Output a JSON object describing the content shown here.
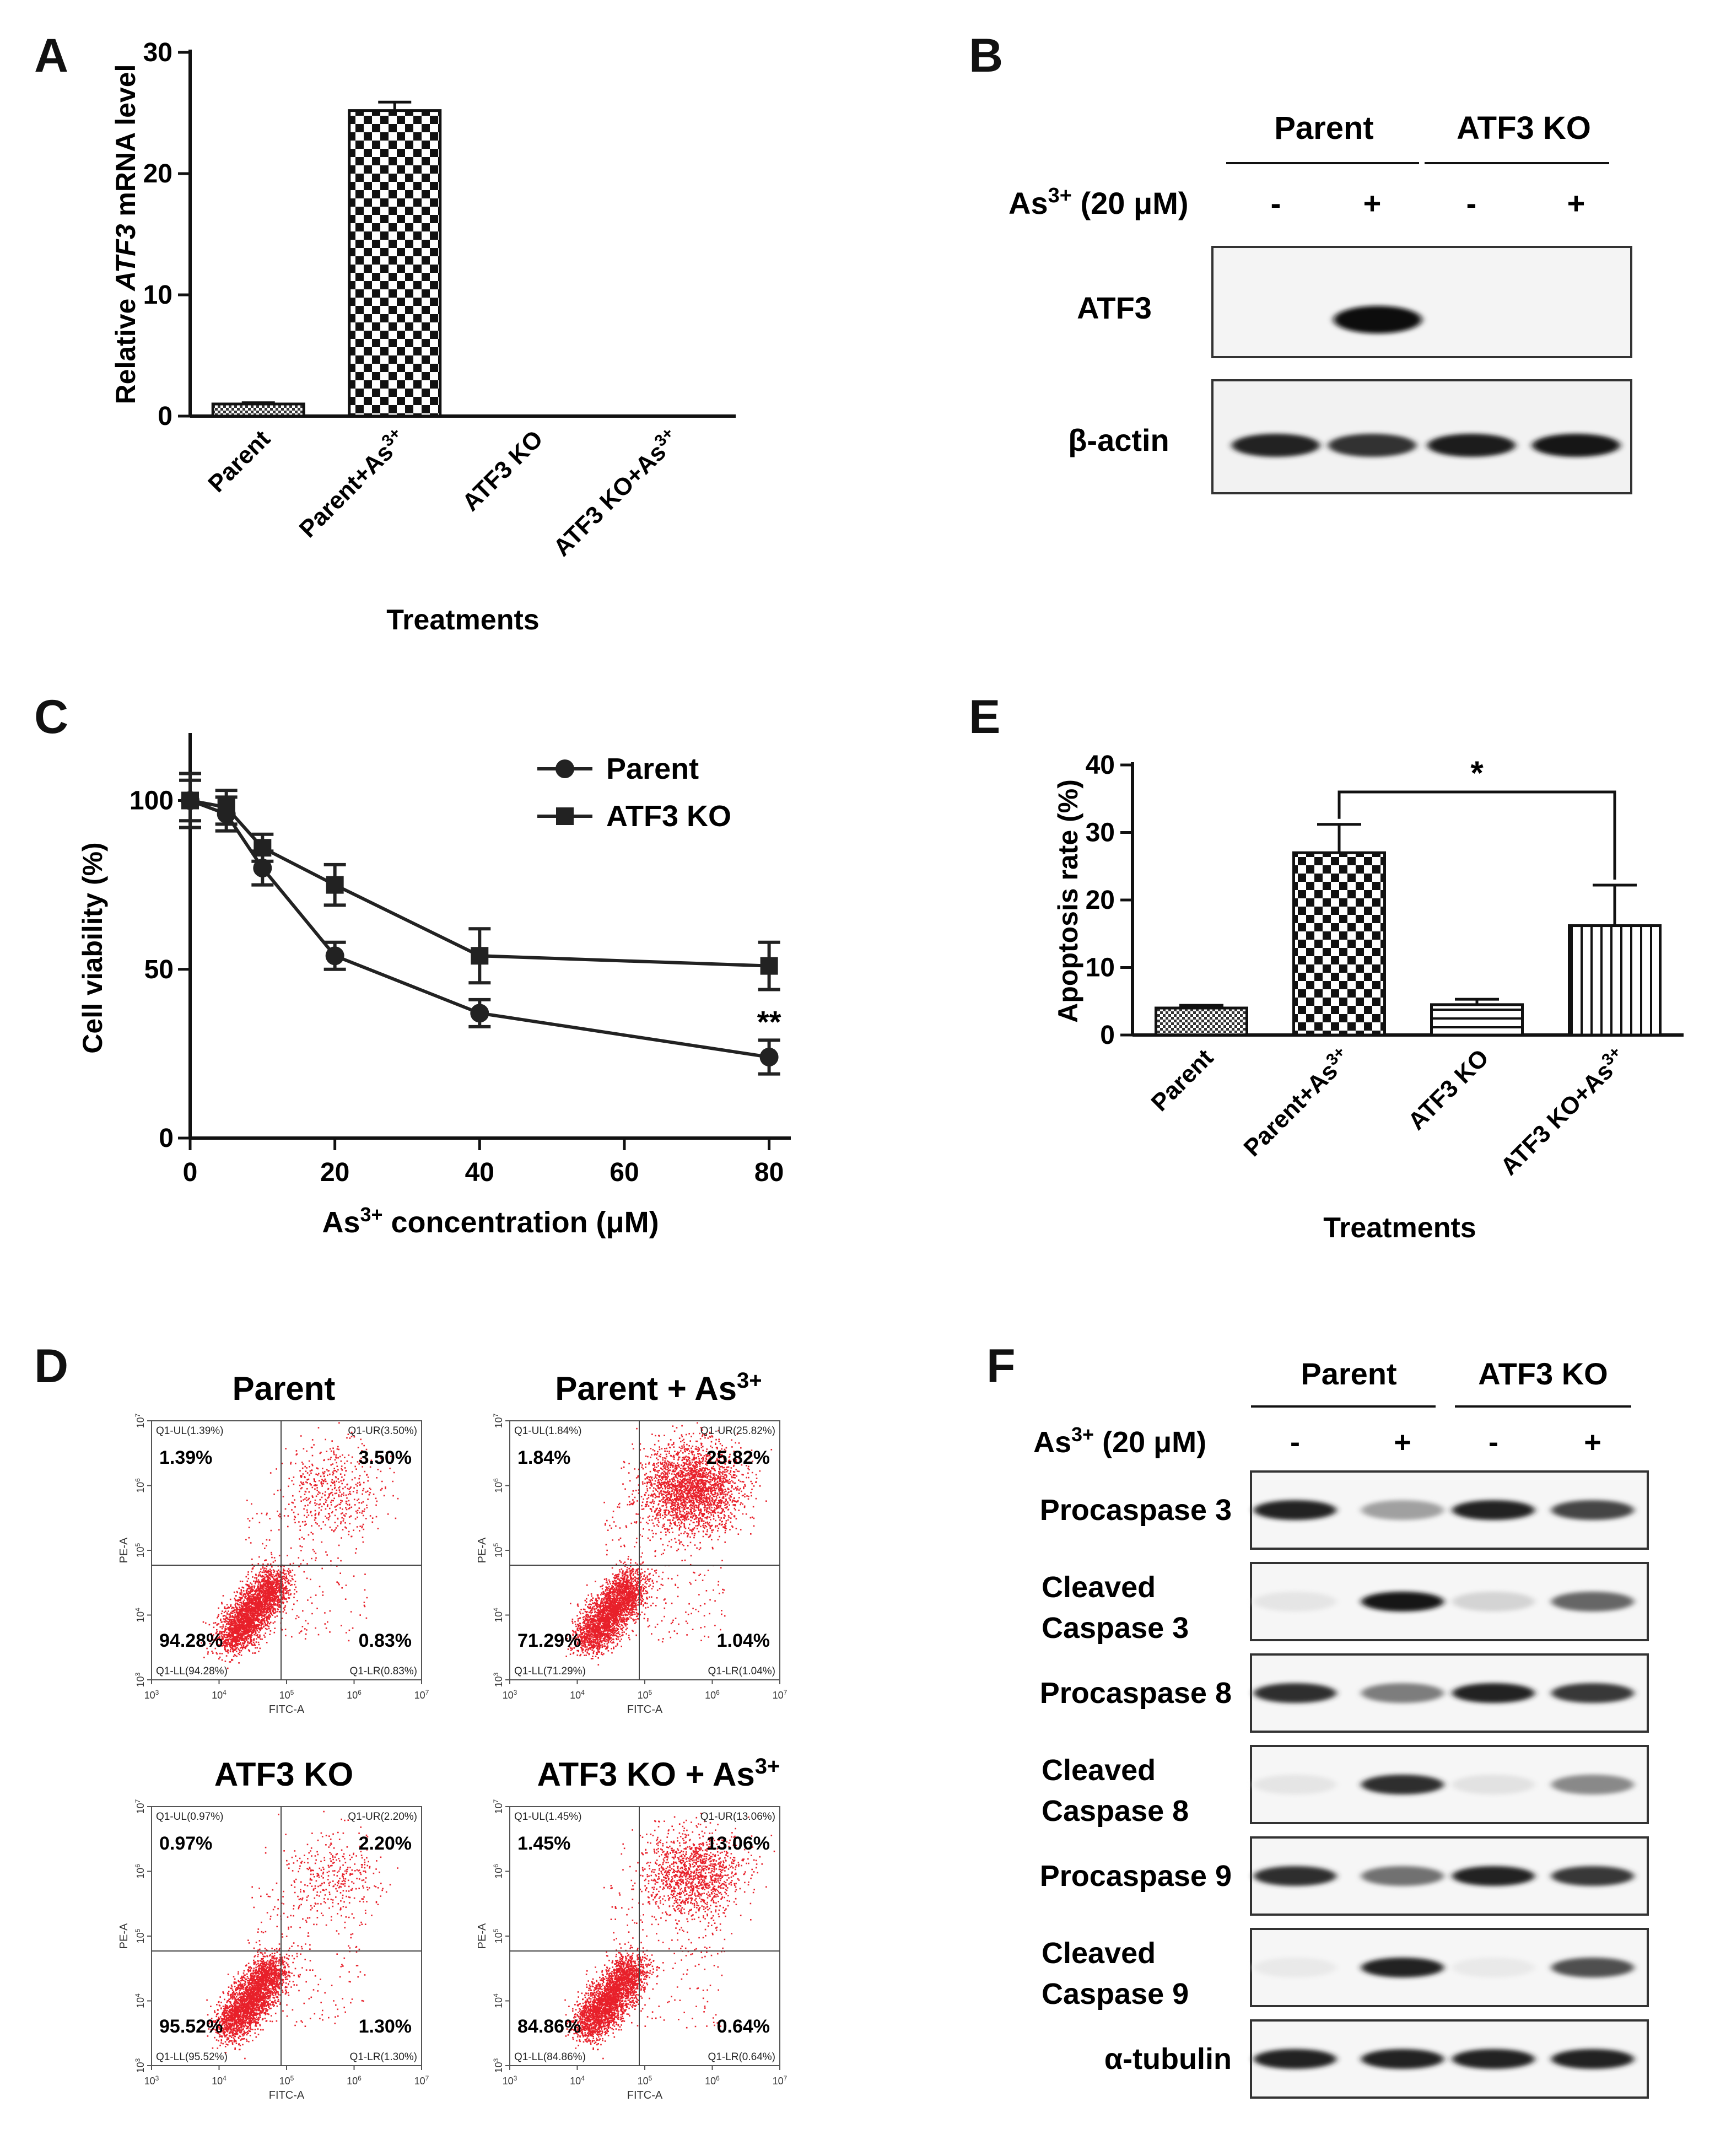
{
  "panel_letters": {
    "A": "A",
    "B": "B",
    "C": "C",
    "D": "D",
    "E": "E",
    "F": "F"
  },
  "chart_data": [
    {
      "panel": "A",
      "type": "bar",
      "categories": [
        "Parent",
        "Parent+As",
        "ATF3 KO",
        "ATF3 KO+As"
      ],
      "category_superscripts": [
        "",
        "3+",
        "",
        "3+"
      ],
      "values": [
        1.0,
        25.2,
        0.0,
        0.0
      ],
      "errors": [
        0.1,
        0.7,
        0,
        0
      ],
      "ylabel_pre": "Relative ",
      "ylabel_italic": "ATF3",
      "ylabel_post": " mRNA level",
      "xlabel": "Treatments",
      "ylim": [
        0,
        30
      ],
      "yticks": [
        0,
        10,
        20,
        30
      ]
    },
    {
      "panel": "C",
      "type": "line",
      "x": [
        0,
        5,
        10,
        20,
        40,
        80
      ],
      "series": [
        {
          "name": "Parent",
          "marker": "circle",
          "values": [
            100,
            96,
            80,
            54,
            37,
            24
          ],
          "errors": [
            8,
            5,
            5,
            4,
            4,
            5
          ]
        },
        {
          "name": "ATF3 KO",
          "marker": "square",
          "values": [
            100,
            98,
            86,
            75,
            54,
            51
          ],
          "errors": [
            6,
            5,
            4,
            6,
            8,
            7
          ]
        }
      ],
      "annotation": "**",
      "ylabel": "Cell viability (%)",
      "xlabel_pre": "As",
      "xlabel_sup": "3+",
      "xlabel_post": " concentration (μM)",
      "ylim": [
        0,
        120
      ],
      "yticks": [
        0,
        50,
        100
      ],
      "xticks": [
        0,
        20,
        40,
        60,
        80
      ],
      "xlim": [
        0,
        83
      ]
    },
    {
      "panel": "E",
      "type": "bar",
      "categories": [
        "Parent",
        "Parent+As",
        "ATF3 KO",
        "ATF3 KO+As"
      ],
      "category_superscripts": [
        "",
        "3+",
        "",
        "3+"
      ],
      "values": [
        4.0,
        27.0,
        4.5,
        16.2
      ],
      "errors": [
        0.4,
        4.2,
        0.8,
        6.0
      ],
      "ylabel": "Apoptosis rate (%)",
      "xlabel": "Treatments",
      "ylim": [
        0,
        40
      ],
      "yticks": [
        0,
        10,
        20,
        30,
        40
      ],
      "significance": "*"
    }
  ],
  "panelB": {
    "groups": [
      "Parent",
      "ATF3 KO"
    ],
    "treatment_pre": "As",
    "treatment_sup": "3+",
    "treatment_post": " (20 μM)",
    "signs": [
      "-",
      "+",
      "-",
      "+"
    ],
    "rows": [
      "ATF3",
      "β-actin"
    ]
  },
  "panelD": {
    "axis_x": "FITC-A",
    "axis_y": "PE-A",
    "tick_base": "10",
    "tick_exps": [
      "3",
      "4",
      "5",
      "6",
      "7"
    ],
    "plots": [
      {
        "title": "Parent",
        "title_sup": "",
        "ul": "1.39%",
        "ur": "3.50%",
        "ll": "94.28%",
        "lr": "0.83%",
        "q_ul": "Q1-UL(1.39%)",
        "q_ur": "Q1-UR(3.50%)",
        "q_ll": "Q1-LL(94.28%)",
        "q_lr": "Q1-LR(0.83%)"
      },
      {
        "title": "Parent + As",
        "title_sup": "3+",
        "ul": "1.84%",
        "ur": "25.82%",
        "ll": "71.29%",
        "lr": "1.04%",
        "q_ul": "Q1-UL(1.84%)",
        "q_ur": "Q1-UR(25.82%)",
        "q_ll": "Q1-LL(71.29%)",
        "q_lr": "Q1-LR(1.04%)"
      },
      {
        "title": "ATF3 KO",
        "title_sup": "",
        "ul": "0.97%",
        "ur": "2.20%",
        "ll": "95.52%",
        "lr": "1.30%",
        "q_ul": "Q1-UL(0.97%)",
        "q_ur": "Q1-UR(2.20%)",
        "q_ll": "Q1-LL(95.52%)",
        "q_lr": "Q1-LR(1.30%)"
      },
      {
        "title": "ATF3 KO + As",
        "title_sup": "3+",
        "ul": "1.45%",
        "ur": "13.06%",
        "ll": "84.86%",
        "lr": "0.64%",
        "q_ul": "Q1-UL(1.45%)",
        "q_ur": "Q1-UR(13.06%)",
        "q_ll": "Q1-LL(84.86%)",
        "q_lr": "Q1-LR(0.64%)"
      }
    ]
  },
  "panelF": {
    "groups": [
      "Parent",
      "ATF3 KO"
    ],
    "treatment_pre": "As",
    "treatment_sup": "3+",
    "treatment_post": " (20 μM)",
    "signs": [
      "-",
      "+",
      "-",
      "+"
    ],
    "rows": [
      {
        "lines": [
          "Procaspase 3"
        ],
        "intensity": [
          0.9,
          0.35,
          0.9,
          0.75
        ]
      },
      {
        "lines": [
          "Cleaved",
          "Caspase 3"
        ],
        "intensity": [
          0.05,
          0.95,
          0.12,
          0.6
        ]
      },
      {
        "lines": [
          "Procaspase 8"
        ],
        "intensity": [
          0.85,
          0.5,
          0.9,
          0.8
        ]
      },
      {
        "lines": [
          "Cleaved",
          "Caspase 8"
        ],
        "intensity": [
          0.05,
          0.85,
          0.06,
          0.45
        ]
      },
      {
        "lines": [
          "Procaspase 9"
        ],
        "intensity": [
          0.85,
          0.55,
          0.9,
          0.8
        ]
      },
      {
        "lines": [
          "Cleaved",
          "Caspase 9"
        ],
        "intensity": [
          0.03,
          0.9,
          0.03,
          0.7
        ]
      },
      {
        "lines": [
          "α-tubulin"
        ],
        "intensity": [
          0.9,
          0.9,
          0.9,
          0.9
        ]
      }
    ]
  }
}
